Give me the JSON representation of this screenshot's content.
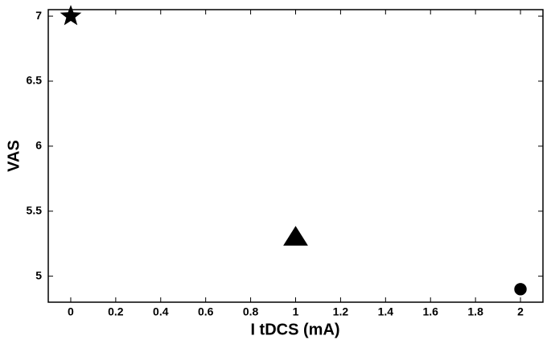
{
  "chart_data": {
    "type": "scatter",
    "x_label": "I tDCS (mA)",
    "y_label": "VAS",
    "x": [
      0,
      1,
      2
    ],
    "values": [
      7,
      5.3,
      4.9
    ],
    "markers": [
      "star",
      "triangle",
      "circle"
    ],
    "color": "#000000",
    "xlim": [
      -0.1,
      2.1
    ],
    "xticks": [
      0,
      0.2,
      0.4,
      0.6,
      0.8,
      1,
      1.2,
      1.4,
      1.6,
      1.8,
      2
    ],
    "ylim": [
      4.8,
      7.05
    ],
    "yticks": [
      5,
      5.5,
      6,
      6.5,
      7
    ]
  }
}
